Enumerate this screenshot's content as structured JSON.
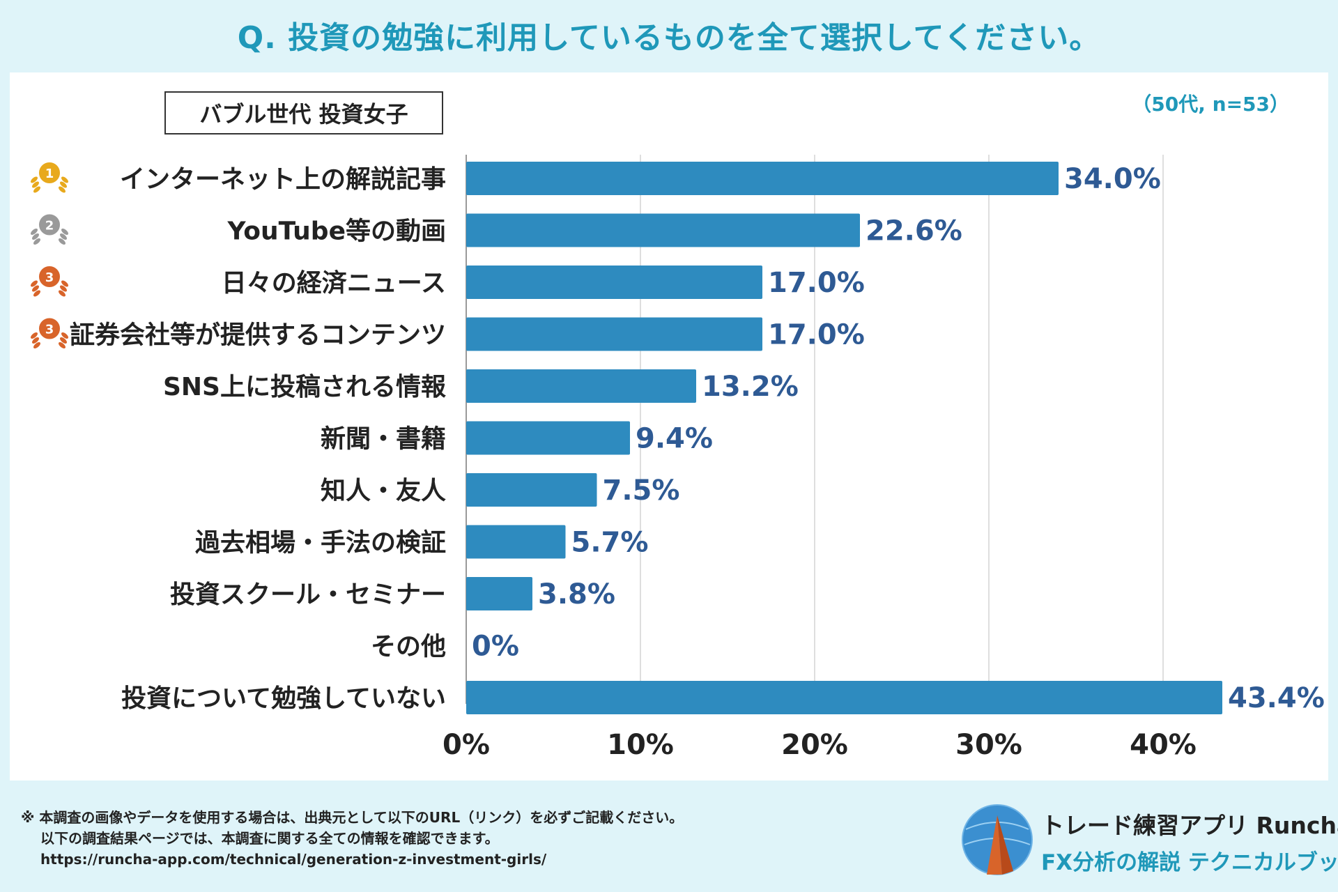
{
  "header": {
    "title": "Q. 投資の勉強に利用しているものを全て選択してください。"
  },
  "group_label": "バブル世代 投資女子",
  "sample_note": "（50代, n=53）",
  "chart_data": {
    "type": "bar",
    "orientation": "horizontal",
    "title": "Q. 投資の勉強に利用しているものを全て選択してください。",
    "categories": [
      "インターネット上の解説記事",
      "YouTube等の動画",
      "日々の経済ニュース",
      "証券会社等が提供するコンテンツ",
      "SNS上に投稿される情報",
      "新聞・書籍",
      "知人・友人",
      "過去相場・手法の検証",
      "投資スクール・セミナー",
      "その他",
      "投資について勉強していない"
    ],
    "values": [
      34.0,
      22.6,
      17.0,
      17.0,
      13.2,
      9.4,
      7.5,
      5.7,
      3.8,
      0,
      43.4
    ],
    "value_labels": [
      "34.0%",
      "22.6%",
      "17.0%",
      "17.0%",
      "13.2%",
      "9.4%",
      "7.5%",
      "5.7%",
      "3.8%",
      "0%",
      "43.4%"
    ],
    "rank_badges": [
      "1",
      "2",
      "3",
      "3",
      "",
      "",
      "",
      "",
      "",
      "",
      ""
    ],
    "xlim": [
      0,
      45
    ],
    "xticks": [
      0,
      10,
      20,
      30,
      40
    ],
    "xtick_labels": [
      "0%",
      "10%",
      "20%",
      "30%",
      "40%"
    ],
    "xlabel": "",
    "ylabel": "",
    "grid": true,
    "colors": {
      "bar": "#2e8bbf",
      "value_text": "#2e5a94",
      "gold": "#e8a91c",
      "silver": "#9a9a9a",
      "bronze": "#d8642a"
    }
  },
  "footer": {
    "note_line1": "※ 本調査の画像やデータを使用する場合は、出典元として以下のURL（リンク）を必ずご記載ください。",
    "note_line2": "以下の調査結果ページでは、本調査に関する全ての情報を確認できます。",
    "url": "https://runcha-app.com/technical/generation-z-investment-girls/"
  },
  "brand": {
    "line1": "トレード練習アプリ Runcha",
    "line2": "FX分析の解説 テクニカルブック"
  }
}
